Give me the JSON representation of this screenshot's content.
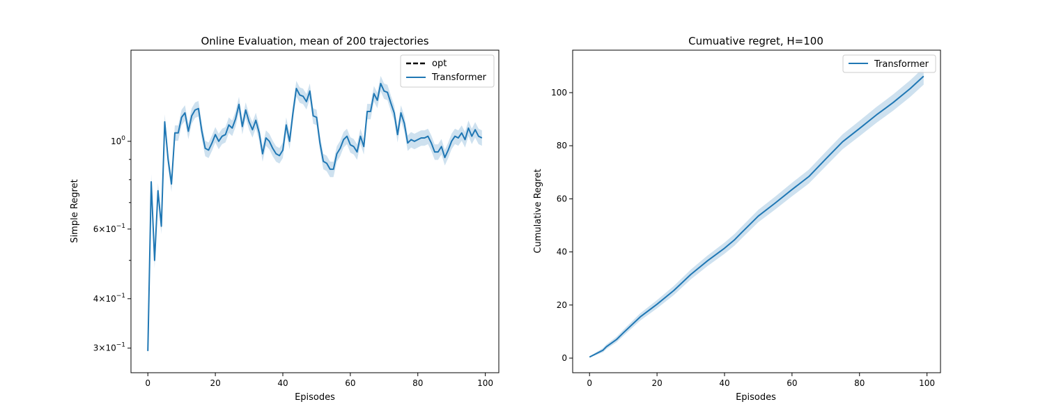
{
  "chart_data": [
    {
      "type": "line",
      "title": "Online Evaluation, mean of 200 trajectories",
      "xlabel": "Episodes",
      "ylabel": "Simple Regret",
      "yscale": "log",
      "xlim": [
        -5,
        104
      ],
      "ylim": [
        0.26,
        1.7
      ],
      "xticks": [
        0,
        20,
        40,
        60,
        80,
        100
      ],
      "xtick_labels": [
        "0",
        "20",
        "40",
        "60",
        "80",
        "100"
      ],
      "yticks_major": [
        0.3,
        0.4,
        0.6,
        1.0
      ],
      "ytick_labels": [
        {
          "mant": "3",
          "base": "10",
          "exp": "−1"
        },
        {
          "mant": "4",
          "base": "10",
          "exp": "−1"
        },
        {
          "mant": "6",
          "base": "10",
          "exp": "−1"
        },
        {
          "mant": "",
          "base": "10",
          "exp": "0"
        }
      ],
      "yticks_minor": [
        0.5,
        0.7,
        0.8,
        0.9
      ],
      "legend": {
        "position": "top-right",
        "entries": [
          "opt",
          "Transformer"
        ]
      },
      "series": [
        {
          "name": "opt",
          "style": "dashed",
          "color": "#000000",
          "values": []
        },
        {
          "name": "Transformer",
          "color": "#1f77b4",
          "band_color": "#1f77b4",
          "x": [
            0,
            1,
            2,
            3,
            4,
            5,
            6,
            7,
            8,
            9,
            10,
            11,
            12,
            13,
            14,
            15,
            16,
            17,
            18,
            19,
            20,
            21,
            22,
            23,
            24,
            25,
            26,
            27,
            28,
            29,
            30,
            31,
            32,
            33,
            34,
            35,
            36,
            37,
            38,
            39,
            40,
            41,
            42,
            43,
            44,
            45,
            46,
            47,
            48,
            49,
            50,
            51,
            52,
            53,
            54,
            55,
            56,
            57,
            58,
            59,
            60,
            61,
            62,
            63,
            64,
            65,
            66,
            67,
            68,
            69,
            70,
            71,
            72,
            73,
            74,
            75,
            76,
            77,
            78,
            79,
            80,
            81,
            82,
            83,
            84,
            85,
            86,
            87,
            88,
            89,
            90,
            91,
            92,
            93,
            94,
            95,
            96,
            97,
            98,
            99
          ],
          "values": [
            0.295,
            0.79,
            0.5,
            0.75,
            0.61,
            1.12,
            0.9,
            0.78,
            1.05,
            1.05,
            1.15,
            1.18,
            1.06,
            1.16,
            1.2,
            1.21,
            1.06,
            0.96,
            0.95,
            0.99,
            1.04,
            1.0,
            1.03,
            1.04,
            1.1,
            1.08,
            1.14,
            1.24,
            1.09,
            1.2,
            1.12,
            1.07,
            1.13,
            1.05,
            0.93,
            1.02,
            1.0,
            0.96,
            0.93,
            0.92,
            0.95,
            1.1,
            1.0,
            1.18,
            1.36,
            1.31,
            1.3,
            1.26,
            1.34,
            1.16,
            1.15,
            0.99,
            0.89,
            0.88,
            0.85,
            0.85,
            0.93,
            0.96,
            1.01,
            1.03,
            0.98,
            0.97,
            0.94,
            1.03,
            0.97,
            1.19,
            1.19,
            1.32,
            1.27,
            1.4,
            1.34,
            1.33,
            1.25,
            1.18,
            1.04,
            1.18,
            1.11,
            0.99,
            1.01,
            1.0,
            1.01,
            1.02,
            1.02,
            1.03,
            0.99,
            0.94,
            0.94,
            0.97,
            0.91,
            0.95,
            1.0,
            1.03,
            1.02,
            1.05,
            1.01,
            1.08,
            1.03,
            1.07,
            1.03,
            1.02
          ],
          "band_half_width_ratio": 0.045
        }
      ]
    },
    {
      "type": "line",
      "title": "Cumuative regret, H=100",
      "xlabel": "Episodes",
      "ylabel": "Cumulative Regret",
      "xlim": [
        -5,
        104
      ],
      "ylim": [
        -5.5,
        116
      ],
      "xticks": [
        0,
        20,
        40,
        60,
        80,
        100
      ],
      "xtick_labels": [
        "0",
        "20",
        "40",
        "60",
        "80",
        "100"
      ],
      "yticks": [
        0,
        20,
        40,
        60,
        80,
        100
      ],
      "ytick_labels": [
        "0",
        "20",
        "40",
        "60",
        "80",
        "100"
      ],
      "legend": {
        "position": "top-right",
        "entries": [
          "Transformer"
        ]
      },
      "series": [
        {
          "name": "Transformer",
          "color": "#1f77b4",
          "band_color": "#1f77b4",
          "x": [
            0,
            4,
            5,
            8,
            10,
            15,
            20,
            25,
            30,
            35,
            40,
            43,
            45,
            50,
            55,
            60,
            65,
            70,
            75,
            80,
            85,
            90,
            95,
            99
          ],
          "values": [
            0.4,
            3.0,
            4.3,
            7.0,
            9.5,
            15.5,
            20.3,
            25.5,
            31.5,
            36.7,
            41.4,
            44.6,
            47.2,
            53.5,
            58.4,
            63.5,
            68.4,
            75.0,
            81.5,
            86.5,
            91.6,
            96.3,
            101.5,
            106.2
          ],
          "band_half_width_at_end": 3.0
        }
      ]
    }
  ]
}
